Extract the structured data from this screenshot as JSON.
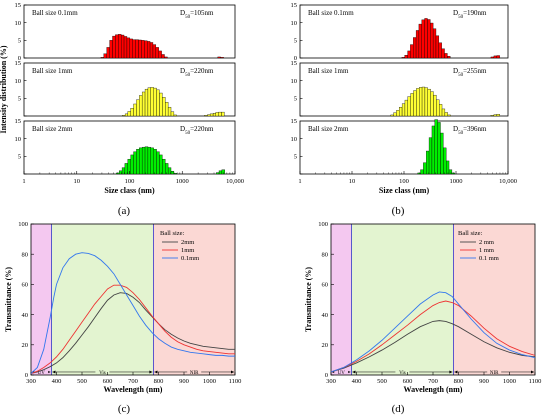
{
  "colors": {
    "red": "#ff0000",
    "yellow": "#ffff33",
    "green": "#00ee00",
    "uv": "#f4c8f0",
    "vis": "#e3f4d0",
    "nir": "#fbd8d4",
    "line_2mm": "#444444",
    "line_1mm": "#ee3333",
    "line_01mm": "#3377ee"
  },
  "captions": {
    "a": "(a)",
    "b": "(b)",
    "c": "(c)",
    "d": "(d)"
  },
  "chart_data": [
    {
      "type": "bar",
      "id": "a",
      "xlabel": "Size class (nm)",
      "ylabel": "Intensity distribution (%)",
      "xscale": "log",
      "xlim": [
        1,
        10000
      ],
      "xticks": [
        "1",
        "10",
        "100",
        "1000",
        "10,000"
      ],
      "panels": [
        {
          "label": "Ball size 0.1mm",
          "d50_prefix": "D",
          "d50_sub": "50",
          "d50_value": "=105nm",
          "color": "red",
          "ylim": [
            0,
            15
          ],
          "yticks": [
            "15",
            "10",
            "5",
            "0"
          ],
          "bins": [
            [
              30.6,
              0.2
            ],
            [
              34.7,
              1.2
            ],
            [
              39.4,
              3.0
            ],
            [
              44.7,
              5.0
            ],
            [
              50.7,
              6.2
            ],
            [
              57.5,
              6.6
            ],
            [
              65.3,
              6.7
            ],
            [
              74.0,
              6.5
            ],
            [
              84.0,
              6.1
            ],
            [
              95.3,
              5.7
            ],
            [
              108.1,
              5.4
            ],
            [
              122.6,
              5.2
            ],
            [
              139.1,
              5.2
            ],
            [
              157.8,
              5.1
            ],
            [
              179.0,
              5.0
            ],
            [
              203.1,
              4.9
            ],
            [
              230.4,
              4.7
            ],
            [
              261.4,
              4.4
            ],
            [
              296.5,
              3.8
            ],
            [
              336.4,
              3.0
            ],
            [
              381.6,
              2.0
            ],
            [
              432.9,
              1.0
            ],
            [
              491.1,
              0.3
            ],
            [
              5000,
              0.3
            ],
            [
              5700,
              0.2
            ]
          ]
        },
        {
          "label": "Ball size 1mm",
          "d50_prefix": "D",
          "d50_sub": "50",
          "d50_value": "=220nm",
          "color": "yellow",
          "ylim": [
            0,
            15
          ],
          "yticks": [
            "15",
            "10",
            "5",
            "0"
          ],
          "bins": [
            [
              78,
              0.2
            ],
            [
              88,
              0.6
            ],
            [
              99,
              1.3
            ],
            [
              112,
              2.2
            ],
            [
              127,
              3.4
            ],
            [
              144,
              4.6
            ],
            [
              163,
              5.8
            ],
            [
              185,
              6.8
            ],
            [
              210,
              7.6
            ],
            [
              238,
              8.0
            ],
            [
              270,
              8.1
            ],
            [
              306,
              7.9
            ],
            [
              347,
              7.4
            ],
            [
              394,
              6.5
            ],
            [
              447,
              5.3
            ],
            [
              507,
              3.9
            ],
            [
              575,
              2.5
            ],
            [
              652,
              1.2
            ],
            [
              740,
              0.3
            ],
            [
              2800,
              0.2
            ],
            [
              3200,
              0.4
            ],
            [
              3600,
              0.6
            ],
            [
              4100,
              0.8
            ],
            [
              4600,
              1.0
            ],
            [
              5200,
              1.1
            ],
            [
              5900,
              1.1
            ]
          ]
        },
        {
          "label": "Ball size 2mm",
          "d50_prefix": "D",
          "d50_sub": "50",
          "d50_value": "=220nm",
          "color": "green",
          "ylim": [
            0,
            15
          ],
          "yticks": [
            "15",
            "10",
            "5",
            "0"
          ],
          "bins": [
            [
              60,
              0.3
            ],
            [
              68,
              0.9
            ],
            [
              77,
              1.8
            ],
            [
              87,
              3.0
            ],
            [
              99,
              4.2
            ],
            [
              112,
              5.4
            ],
            [
              127,
              6.3
            ],
            [
              144,
              7.0
            ],
            [
              163,
              7.4
            ],
            [
              185,
              7.6
            ],
            [
              210,
              7.7
            ],
            [
              238,
              7.6
            ],
            [
              270,
              7.4
            ],
            [
              306,
              7.0
            ],
            [
              347,
              6.3
            ],
            [
              394,
              5.4
            ],
            [
              447,
              4.2
            ],
            [
              507,
              3.0
            ],
            [
              575,
              1.8
            ],
            [
              652,
              0.8
            ],
            [
              740,
              0.2
            ],
            [
              4700,
              0.4
            ],
            [
              5300,
              0.9
            ],
            [
              6000,
              1.2
            ]
          ]
        }
      ]
    },
    {
      "type": "bar",
      "id": "b",
      "xlabel": "Size class (nm)",
      "xscale": "log",
      "xlim": [
        1,
        10000
      ],
      "xticks": [
        "1",
        "10",
        "100",
        "1000",
        "10,000"
      ],
      "panels": [
        {
          "label": "Ball size 0.1mm",
          "d50_prefix": "D",
          "d50_sub": "50",
          "d50_value": "=190nm",
          "color": "red",
          "ylim": [
            0,
            15
          ],
          "yticks": [
            "15",
            "10",
            "5",
            "0"
          ],
          "bins": [
            [
              97,
              0.2
            ],
            [
              110,
              0.8
            ],
            [
              125,
              2.0
            ],
            [
              141,
              3.8
            ],
            [
              160,
              5.8
            ],
            [
              182,
              7.8
            ],
            [
              206,
              9.6
            ],
            [
              234,
              10.8
            ],
            [
              265,
              11.2
            ],
            [
              301,
              10.9
            ],
            [
              341,
              9.9
            ],
            [
              387,
              8.3
            ],
            [
              439,
              6.3
            ],
            [
              498,
              4.3
            ],
            [
              565,
              2.6
            ],
            [
              641,
              1.3
            ],
            [
              727,
              0.5
            ],
            [
              5000,
              0.3
            ],
            [
              5700,
              0.6
            ],
            [
              6500,
              0.7
            ]
          ]
        },
        {
          "label": "Ball size 1mm",
          "d50_prefix": "D",
          "d50_sub": "50",
          "d50_value": "=255nm",
          "color": "yellow",
          "ylim": [
            0,
            15
          ],
          "yticks": [
            "15",
            "10",
            "5",
            "0"
          ],
          "bins": [
            [
              59,
              0.3
            ],
            [
              67,
              0.9
            ],
            [
              76,
              1.6
            ],
            [
              86,
              2.5
            ],
            [
              98,
              3.5
            ],
            [
              111,
              4.5
            ],
            [
              126,
              5.5
            ],
            [
              143,
              6.4
            ],
            [
              162,
              7.2
            ],
            [
              184,
              7.8
            ],
            [
              209,
              8.1
            ],
            [
              237,
              8.2
            ],
            [
              269,
              8.0
            ],
            [
              305,
              7.6
            ],
            [
              346,
              6.9
            ],
            [
              393,
              5.9
            ],
            [
              446,
              4.6
            ],
            [
              506,
              3.3
            ],
            [
              574,
              2.0
            ],
            [
              651,
              1.0
            ],
            [
              739,
              0.3
            ],
            [
              5000,
              0.2
            ],
            [
              5700,
              0.4
            ],
            [
              6500,
              0.5
            ]
          ]
        },
        {
          "label": "Ball size 2mm",
          "d50_prefix": "D",
          "d50_sub": "50",
          "d50_value": "=396nm",
          "color": "green",
          "ylim": [
            0,
            15
          ],
          "yticks": [
            "15",
            "10",
            "5",
            "0"
          ],
          "bins": [
            [
              195,
              0.3
            ],
            [
              221,
              1.2
            ],
            [
              251,
              3.2
            ],
            [
              285,
              6.5
            ],
            [
              323,
              10.3
            ],
            [
              367,
              13.6
            ],
            [
              416,
              15.4
            ],
            [
              472,
              14.6
            ],
            [
              536,
              11.6
            ],
            [
              608,
              7.4
            ],
            [
              690,
              3.7
            ],
            [
              783,
              1.2
            ],
            [
              889,
              0.3
            ]
          ]
        }
      ]
    },
    {
      "type": "line",
      "id": "c",
      "xlabel": "Wavelength (nm)",
      "ylabel": "Transmittance (%)",
      "xlim": [
        300,
        1100
      ],
      "ylim": [
        0,
        100
      ],
      "xticks": [
        300,
        400,
        500,
        600,
        700,
        800,
        900,
        1000,
        1100
      ],
      "yticks": [
        0,
        20,
        40,
        60,
        80,
        100
      ],
      "regions": [
        {
          "name": "UV",
          "from": 300,
          "to": 380,
          "color": "uv"
        },
        {
          "name": "Vis",
          "from": 380,
          "to": 780,
          "color": "vis"
        },
        {
          "name": "NIR",
          "from": 780,
          "to": 1100,
          "color": "nir"
        }
      ],
      "legend_title": "Ball size:",
      "legend_position": "top-right",
      "series": [
        {
          "name": "2mm",
          "color": "line_2mm",
          "x": [
            300,
            325,
            350,
            375,
            400,
            425,
            450,
            475,
            500,
            525,
            550,
            575,
            600,
            625,
            650,
            675,
            700,
            725,
            750,
            775,
            800,
            825,
            850,
            875,
            900,
            925,
            950,
            975,
            1000,
            1025,
            1050,
            1075,
            1100
          ],
          "y": [
            1,
            2,
            3.5,
            5.5,
            8,
            11.5,
            16,
            21,
            26.5,
            32,
            38,
            44,
            49.5,
            53,
            54.5,
            54,
            51.5,
            48,
            43,
            38.5,
            34,
            30,
            27,
            24.5,
            22.5,
            21,
            20,
            19,
            18.5,
            18,
            17.5,
            17,
            17
          ]
        },
        {
          "name": "1mm",
          "color": "line_1mm",
          "x": [
            300,
            325,
            350,
            375,
            400,
            425,
            450,
            475,
            500,
            525,
            550,
            575,
            600,
            625,
            650,
            675,
            700,
            725,
            750,
            775,
            800,
            825,
            850,
            875,
            900,
            925,
            950,
            975,
            1000,
            1025,
            1050,
            1075,
            1100
          ],
          "y": [
            1,
            2.5,
            5,
            8,
            12,
            17,
            23,
            29,
            35,
            41,
            47,
            52,
            57,
            59.5,
            59.5,
            58,
            54.5,
            50,
            44.5,
            39,
            34,
            29,
            25,
            22,
            20,
            18.5,
            17,
            16,
            15.5,
            15,
            14.5,
            14,
            14
          ]
        },
        {
          "name": "0.1mm",
          "color": "line_01mm",
          "x": [
            300,
            325,
            350,
            375,
            390,
            400,
            425,
            450,
            475,
            500,
            525,
            550,
            575,
            600,
            625,
            650,
            675,
            700,
            725,
            750,
            775,
            800,
            825,
            850,
            875,
            900,
            925,
            950,
            975,
            1000,
            1025,
            1050,
            1075,
            1100
          ],
          "y": [
            1,
            5,
            17,
            38,
            52,
            60,
            71,
            77,
            80,
            81,
            80.5,
            79,
            76,
            72,
            67,
            60,
            53,
            46,
            39,
            33,
            28,
            24,
            21,
            18.5,
            17,
            16,
            15,
            14.5,
            14,
            13.5,
            13,
            13,
            12.5,
            12.5
          ]
        }
      ]
    },
    {
      "type": "line",
      "id": "d",
      "xlabel": "Wavelength (nm)",
      "ylabel": "Transmittance (%)",
      "xlim": [
        300,
        1100
      ],
      "ylim": [
        0,
        100
      ],
      "xticks": [
        300,
        400,
        500,
        600,
        700,
        800,
        900,
        1000,
        1100
      ],
      "yticks": [
        0,
        20,
        40,
        60,
        80,
        100
      ],
      "regions": [
        {
          "name": "UV",
          "from": 300,
          "to": 380,
          "color": "uv"
        },
        {
          "name": "Vis",
          "from": 380,
          "to": 780,
          "color": "vis"
        },
        {
          "name": "NIR",
          "from": 780,
          "to": 1100,
          "color": "nir"
        }
      ],
      "legend_title": "Ball size:",
      "legend_position": "top-right",
      "series": [
        {
          "name": "2 mm",
          "color": "line_2mm",
          "x": [
            300,
            350,
            400,
            450,
            500,
            550,
            600,
            650,
            700,
            725,
            750,
            775,
            800,
            850,
            900,
            950,
            1000,
            1050,
            1100
          ],
          "y": [
            2,
            4.5,
            8,
            12,
            16.5,
            21.5,
            27,
            32,
            35.5,
            36,
            35.5,
            34,
            32,
            27,
            22,
            18,
            15,
            13,
            12
          ]
        },
        {
          "name": "1 mm",
          "color": "line_1mm",
          "x": [
            300,
            350,
            400,
            450,
            500,
            550,
            600,
            650,
            700,
            725,
            750,
            775,
            800,
            850,
            900,
            950,
            1000,
            1050,
            1100
          ],
          "y": [
            2,
            5,
            9,
            14,
            20,
            26.5,
            33,
            40,
            46,
            48,
            49,
            48,
            46,
            39,
            31,
            24,
            19,
            15.5,
            13
          ]
        },
        {
          "name": "0.1 mm",
          "color": "line_01mm",
          "x": [
            300,
            350,
            400,
            450,
            500,
            550,
            600,
            650,
            700,
            725,
            750,
            775,
            800,
            850,
            900,
            950,
            1000,
            1050,
            1100
          ],
          "y": [
            2,
            5,
            10,
            16,
            23,
            31,
            39,
            47,
            53,
            55,
            54.5,
            52,
            47,
            37,
            28,
            21,
            16.5,
            13.5,
            11.5
          ]
        }
      ]
    }
  ]
}
